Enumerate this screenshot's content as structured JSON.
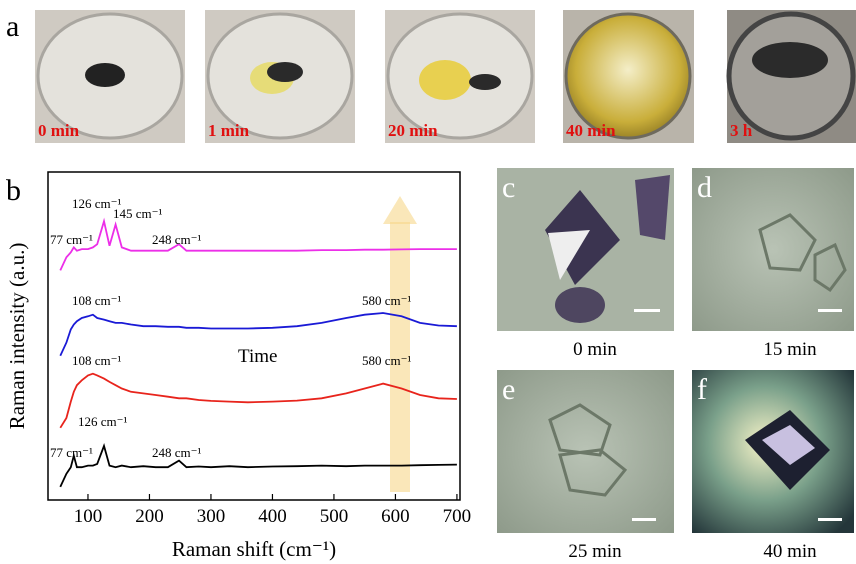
{
  "panel_a": {
    "label": "a",
    "photos": [
      {
        "caption": "0 min"
      },
      {
        "caption": "1 min"
      },
      {
        "caption": "20 min"
      },
      {
        "caption": "40 min"
      },
      {
        "caption": "3 h"
      }
    ]
  },
  "chart_data": {
    "type": "line",
    "panel_label": "b",
    "x_label": "Raman shift (cm⁻¹)",
    "y_label": "Raman intensity (a.u.)",
    "x": [
      55,
      65,
      72,
      77,
      82,
      90,
      100,
      108,
      115,
      126,
      135,
      145,
      155,
      170,
      190,
      210,
      230,
      248,
      260,
      280,
      300,
      330,
      360,
      400,
      440,
      480,
      520,
      550,
      580,
      610,
      640,
      670,
      700
    ],
    "xlim": [
      35,
      705
    ],
    "ylim": [
      0,
      100
    ],
    "xticks": [
      100,
      200,
      300,
      400,
      500,
      600,
      700
    ],
    "series": [
      {
        "color": "#000000",
        "values": [
          4,
          8,
          10,
          13.5,
          10,
          10,
          10.5,
          10.5,
          11,
          16.5,
          10.5,
          10,
          10.5,
          10,
          10.3,
          10,
          10,
          12,
          10,
          10.2,
          10,
          10.3,
          10,
          10.2,
          10.3,
          10.5,
          10.3,
          10.5,
          10.5,
          10.5,
          10.6,
          10.7,
          10.8
        ]
      },
      {
        "color": "#e8241c",
        "values": [
          22,
          25,
          30,
          33,
          35,
          36.5,
          38,
          38.5,
          38,
          37,
          36,
          35,
          34,
          33,
          32.5,
          32,
          31.5,
          31,
          31,
          30.5,
          30.2,
          30,
          29.8,
          30,
          30.3,
          31,
          32.5,
          34,
          35.5,
          34,
          32,
          31,
          30.8
        ]
      },
      {
        "color": "#1a1ad6",
        "values": [
          44,
          48,
          52,
          53.5,
          54.5,
          55.5,
          56,
          56.5,
          55.5,
          55,
          54.5,
          54,
          54,
          53.5,
          53,
          53,
          52.8,
          52.8,
          52.5,
          52.5,
          52.3,
          52.3,
          52.3,
          52.5,
          53,
          54,
          55.5,
          56.5,
          57,
          56,
          54,
          53.2,
          53
        ]
      },
      {
        "color": "#ec2fe8",
        "values": [
          70,
          74,
          75.5,
          77,
          76,
          76.5,
          76.5,
          77,
          78,
          85,
          77.5,
          84,
          77,
          76,
          76,
          76,
          76,
          78,
          76,
          76,
          76,
          76,
          76,
          76,
          76,
          76.2,
          76.2,
          76.3,
          76.3,
          76.4,
          76.5,
          76.5,
          76.5
        ]
      }
    ],
    "annotations": [
      "126 cm⁻¹",
      "145 cm⁻¹",
      "77 cm⁻¹",
      "248 cm⁻¹",
      "108 cm⁻¹",
      "580 cm⁻¹",
      "108 cm⁻¹",
      "580 cm⁻¹",
      "126 cm⁻¹",
      "77 cm⁻¹",
      "248 cm⁻¹",
      "Time"
    ]
  },
  "panel_micro": [
    {
      "label": "c",
      "caption": "0 min"
    },
    {
      "label": "d",
      "caption": "15 min"
    },
    {
      "label": "e",
      "caption": "25 min"
    },
    {
      "label": "f",
      "caption": "40 min"
    }
  ]
}
